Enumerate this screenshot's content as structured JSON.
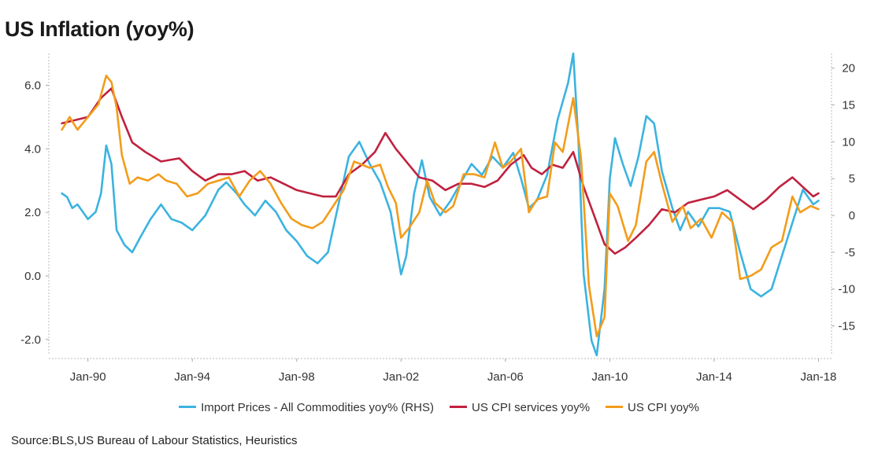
{
  "chart_data": {
    "type": "line",
    "title": "US Inflation (yoy%)",
    "source": "Source:BLS,US Bureau of Labour Statistics, Heuristics",
    "x_ticks": [
      "Jan-90",
      "Jan-94",
      "Jan-98",
      "Jan-02",
      "Jan-06",
      "Jan-10",
      "Jan-14",
      "Jan-18"
    ],
    "y_left": {
      "ylim": [
        -2.5,
        7.0
      ],
      "ticks": [
        "6.0",
        "4.0",
        "2.0",
        "0.0",
        "-2.0"
      ],
      "tick_values": [
        6,
        4,
        2,
        0,
        -2
      ]
    },
    "y_right": {
      "ylim": [
        -19,
        22
      ],
      "ticks": [
        "20",
        "15",
        "10",
        "5",
        "0",
        "-5",
        "-10",
        "-15"
      ],
      "tick_values": [
        20,
        15,
        10,
        5,
        0,
        -5,
        -10,
        -15
      ]
    },
    "grid": false,
    "legend": "bottom",
    "series": [
      {
        "name": "Import Prices - All Commodities yoy% (RHS)",
        "axis": "right",
        "color": "#3bb3e0",
        "points": [
          [
            1989.0,
            3.0
          ],
          [
            1989.2,
            2.5
          ],
          [
            1989.4,
            1.0
          ],
          [
            1989.6,
            1.5
          ],
          [
            1989.8,
            0.5
          ],
          [
            1990.0,
            -0.5
          ],
          [
            1990.3,
            0.5
          ],
          [
            1990.5,
            3.0
          ],
          [
            1990.7,
            9.5
          ],
          [
            1990.9,
            7.0
          ],
          [
            1991.1,
            -2.0
          ],
          [
            1991.4,
            -4.0
          ],
          [
            1991.7,
            -5.0
          ],
          [
            1992.0,
            -3.0
          ],
          [
            1992.4,
            -0.5
          ],
          [
            1992.8,
            1.5
          ],
          [
            1993.2,
            -0.5
          ],
          [
            1993.6,
            -1.0
          ],
          [
            1994.0,
            -2.0
          ],
          [
            1994.5,
            0.0
          ],
          [
            1995.0,
            3.5
          ],
          [
            1995.3,
            4.5
          ],
          [
            1995.7,
            3.0
          ],
          [
            1996.0,
            1.5
          ],
          [
            1996.4,
            0.0
          ],
          [
            1996.8,
            2.0
          ],
          [
            1997.2,
            0.5
          ],
          [
            1997.6,
            -2.0
          ],
          [
            1998.0,
            -3.5
          ],
          [
            1998.4,
            -5.5
          ],
          [
            1998.8,
            -6.5
          ],
          [
            1999.2,
            -5.0
          ],
          [
            1999.6,
            1.5
          ],
          [
            2000.0,
            8.0
          ],
          [
            2000.4,
            10.0
          ],
          [
            2000.8,
            7.0
          ],
          [
            2001.2,
            4.5
          ],
          [
            2001.6,
            0.5
          ],
          [
            2002.0,
            -8.0
          ],
          [
            2002.2,
            -5.5
          ],
          [
            2002.5,
            3.0
          ],
          [
            2002.8,
            7.5
          ],
          [
            2003.1,
            2.5
          ],
          [
            2003.5,
            0.0
          ],
          [
            2003.9,
            2.0
          ],
          [
            2004.3,
            4.5
          ],
          [
            2004.7,
            7.0
          ],
          [
            2005.1,
            5.5
          ],
          [
            2005.5,
            8.0
          ],
          [
            2005.9,
            6.5
          ],
          [
            2006.3,
            8.5
          ],
          [
            2006.6,
            5.0
          ],
          [
            2006.9,
            1.0
          ],
          [
            2007.2,
            2.0
          ],
          [
            2007.6,
            5.5
          ],
          [
            2008.0,
            13.0
          ],
          [
            2008.4,
            18.0
          ],
          [
            2008.6,
            22.0
          ],
          [
            2008.8,
            10.0
          ],
          [
            2009.0,
            -8.0
          ],
          [
            2009.3,
            -17.0
          ],
          [
            2009.5,
            -19.0
          ],
          [
            2009.8,
            -10.0
          ],
          [
            2010.0,
            5.0
          ],
          [
            2010.2,
            10.5
          ],
          [
            2010.5,
            7.0
          ],
          [
            2010.8,
            4.0
          ],
          [
            2011.1,
            8.0
          ],
          [
            2011.4,
            13.5
          ],
          [
            2011.7,
            12.5
          ],
          [
            2012.0,
            6.0
          ],
          [
            2012.4,
            1.0
          ],
          [
            2012.7,
            -2.0
          ],
          [
            2013.0,
            0.5
          ],
          [
            2013.4,
            -1.5
          ],
          [
            2013.8,
            1.0
          ],
          [
            2014.2,
            1.0
          ],
          [
            2014.6,
            0.5
          ],
          [
            2015.0,
            -5.0
          ],
          [
            2015.4,
            -10.0
          ],
          [
            2015.8,
            -11.0
          ],
          [
            2016.2,
            -10.0
          ],
          [
            2016.6,
            -5.5
          ],
          [
            2017.0,
            -1.0
          ],
          [
            2017.4,
            3.5
          ],
          [
            2017.8,
            1.5
          ],
          [
            2018.0,
            2.0
          ]
        ]
      },
      {
        "name": "US CPI services yoy%",
        "axis": "left",
        "color": "#c0213f",
        "points": [
          [
            1989.0,
            4.8
          ],
          [
            1989.5,
            4.9
          ],
          [
            1990.0,
            5.0
          ],
          [
            1990.5,
            5.6
          ],
          [
            1990.9,
            5.9
          ],
          [
            1991.3,
            5.0
          ],
          [
            1991.7,
            4.2
          ],
          [
            1992.2,
            3.9
          ],
          [
            1992.8,
            3.6
          ],
          [
            1993.5,
            3.7
          ],
          [
            1994.0,
            3.3
          ],
          [
            1994.5,
            3.0
          ],
          [
            1995.0,
            3.2
          ],
          [
            1995.5,
            3.2
          ],
          [
            1996.0,
            3.3
          ],
          [
            1996.5,
            3.0
          ],
          [
            1997.0,
            3.1
          ],
          [
            1997.5,
            2.9
          ],
          [
            1998.0,
            2.7
          ],
          [
            1998.5,
            2.6
          ],
          [
            1999.0,
            2.5
          ],
          [
            1999.5,
            2.5
          ],
          [
            2000.0,
            3.2
          ],
          [
            2000.5,
            3.5
          ],
          [
            2001.0,
            3.9
          ],
          [
            2001.4,
            4.5
          ],
          [
            2001.8,
            4.0
          ],
          [
            2002.2,
            3.6
          ],
          [
            2002.7,
            3.1
          ],
          [
            2003.2,
            3.0
          ],
          [
            2003.7,
            2.7
          ],
          [
            2004.2,
            2.9
          ],
          [
            2004.7,
            2.9
          ],
          [
            2005.2,
            2.8
          ],
          [
            2005.7,
            3.0
          ],
          [
            2006.2,
            3.5
          ],
          [
            2006.7,
            3.8
          ],
          [
            2007.0,
            3.4
          ],
          [
            2007.4,
            3.2
          ],
          [
            2007.8,
            3.5
          ],
          [
            2008.2,
            3.4
          ],
          [
            2008.6,
            3.9
          ],
          [
            2009.0,
            2.8
          ],
          [
            2009.4,
            1.9
          ],
          [
            2009.8,
            1.0
          ],
          [
            2010.2,
            0.7
          ],
          [
            2010.6,
            0.9
          ],
          [
            2011.0,
            1.2
          ],
          [
            2011.5,
            1.6
          ],
          [
            2012.0,
            2.1
          ],
          [
            2012.5,
            2.0
          ],
          [
            2013.0,
            2.3
          ],
          [
            2013.5,
            2.4
          ],
          [
            2014.0,
            2.5
          ],
          [
            2014.5,
            2.7
          ],
          [
            2015.0,
            2.4
          ],
          [
            2015.5,
            2.1
          ],
          [
            2016.0,
            2.4
          ],
          [
            2016.5,
            2.8
          ],
          [
            2017.0,
            3.1
          ],
          [
            2017.4,
            2.8
          ],
          [
            2017.8,
            2.5
          ],
          [
            2018.0,
            2.6
          ]
        ]
      },
      {
        "name": "US CPI yoy%",
        "axis": "left",
        "color": "#f39c1a",
        "points": [
          [
            1989.0,
            4.6
          ],
          [
            1989.3,
            5.0
          ],
          [
            1989.6,
            4.6
          ],
          [
            1990.0,
            5.0
          ],
          [
            1990.4,
            5.4
          ],
          [
            1990.7,
            6.3
          ],
          [
            1990.9,
            6.1
          ],
          [
            1991.1,
            5.3
          ],
          [
            1991.3,
            3.8
          ],
          [
            1991.6,
            2.9
          ],
          [
            1991.9,
            3.1
          ],
          [
            1992.3,
            3.0
          ],
          [
            1992.7,
            3.2
          ],
          [
            1993.0,
            3.0
          ],
          [
            1993.4,
            2.9
          ],
          [
            1993.8,
            2.5
          ],
          [
            1994.2,
            2.6
          ],
          [
            1994.6,
            2.9
          ],
          [
            1995.0,
            3.0
          ],
          [
            1995.4,
            3.1
          ],
          [
            1995.8,
            2.5
          ],
          [
            1996.2,
            3.0
          ],
          [
            1996.6,
            3.3
          ],
          [
            1997.0,
            2.9
          ],
          [
            1997.4,
            2.3
          ],
          [
            1997.8,
            1.8
          ],
          [
            1998.2,
            1.6
          ],
          [
            1998.6,
            1.5
          ],
          [
            1999.0,
            1.7
          ],
          [
            1999.4,
            2.2
          ],
          [
            1999.8,
            2.7
          ],
          [
            2000.2,
            3.6
          ],
          [
            2000.5,
            3.5
          ],
          [
            2000.8,
            3.4
          ],
          [
            2001.2,
            3.5
          ],
          [
            2001.5,
            2.8
          ],
          [
            2001.8,
            2.3
          ],
          [
            2002.0,
            1.2
          ],
          [
            2002.3,
            1.5
          ],
          [
            2002.7,
            2.0
          ],
          [
            2003.0,
            3.0
          ],
          [
            2003.3,
            2.3
          ],
          [
            2003.7,
            2.0
          ],
          [
            2004.0,
            2.2
          ],
          [
            2004.4,
            3.2
          ],
          [
            2004.8,
            3.2
          ],
          [
            2005.2,
            3.1
          ],
          [
            2005.6,
            4.2
          ],
          [
            2005.9,
            3.4
          ],
          [
            2006.2,
            3.6
          ],
          [
            2006.6,
            4.0
          ],
          [
            2006.9,
            2.0
          ],
          [
            2007.2,
            2.4
          ],
          [
            2007.6,
            2.5
          ],
          [
            2007.9,
            4.2
          ],
          [
            2008.2,
            3.9
          ],
          [
            2008.6,
            5.6
          ],
          [
            2008.9,
            3.7
          ],
          [
            2009.2,
            -0.3
          ],
          [
            2009.5,
            -1.9
          ],
          [
            2009.8,
            -1.3
          ],
          [
            2010.0,
            2.6
          ],
          [
            2010.3,
            2.2
          ],
          [
            2010.7,
            1.1
          ],
          [
            2011.0,
            1.6
          ],
          [
            2011.4,
            3.6
          ],
          [
            2011.7,
            3.9
          ],
          [
            2012.0,
            2.9
          ],
          [
            2012.4,
            1.7
          ],
          [
            2012.8,
            2.2
          ],
          [
            2013.1,
            1.5
          ],
          [
            2013.5,
            1.8
          ],
          [
            2013.9,
            1.2
          ],
          [
            2014.3,
            2.0
          ],
          [
            2014.7,
            1.7
          ],
          [
            2015.0,
            -0.1
          ],
          [
            2015.4,
            0.0
          ],
          [
            2015.8,
            0.2
          ],
          [
            2016.2,
            0.9
          ],
          [
            2016.6,
            1.1
          ],
          [
            2017.0,
            2.5
          ],
          [
            2017.3,
            2.0
          ],
          [
            2017.7,
            2.2
          ],
          [
            2018.0,
            2.1
          ]
        ]
      }
    ]
  }
}
